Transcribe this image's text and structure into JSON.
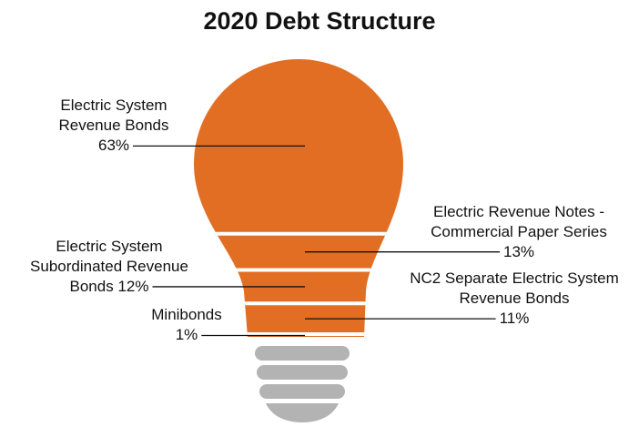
{
  "chart_data": {
    "type": "bulb",
    "title": "2020 Debt Structure",
    "categories": [
      "Electric System Revenue Bonds",
      "Electric Revenue Notes - Commercial Paper Series",
      "Electric System Subordinated Revenue Bonds",
      "NC2 Separate Electric System Revenue Bonds",
      "Minibonds"
    ],
    "values": [
      63,
      13,
      12,
      11,
      1
    ],
    "value_labels": [
      "63%",
      "13%",
      "12%",
      "11%",
      "1%"
    ],
    "color": "#e26e24"
  }
}
